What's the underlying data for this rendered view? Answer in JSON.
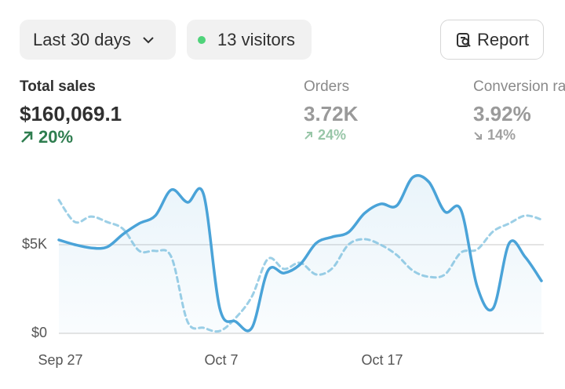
{
  "header": {
    "range_button": "Last 30 days",
    "visitors_button": "13 visitors",
    "report_button": "Report"
  },
  "metrics": [
    {
      "label": "Total sales",
      "value": "$160,069.1",
      "change": "20%"
    },
    {
      "label": "Orders",
      "value": "3.72K",
      "change": "24%"
    },
    {
      "label": "Conversion rate",
      "value": "3.92%",
      "change": "14%"
    }
  ],
  "chart_data": {
    "type": "line",
    "categories": [
      "Sep 27",
      null,
      null,
      null,
      null,
      null,
      null,
      null,
      null,
      null,
      "Oct 7",
      null,
      null,
      null,
      null,
      null,
      null,
      null,
      null,
      null,
      "Oct 17",
      null,
      null,
      null,
      null,
      null,
      null,
      null,
      null,
      null,
      null
    ],
    "series": [
      {
        "color": "#4aa3d8",
        "style": "solid",
        "area": true,
        "values": [
          5270,
          5000,
          4820,
          4870,
          5600,
          6200,
          6640,
          8100,
          7390,
          7830,
          1420,
          660,
          310,
          3540,
          3400,
          3890,
          5090,
          5440,
          5700,
          6770,
          7300,
          7200,
          8800,
          8540,
          6860,
          6950,
          2650,
          1420,
          5090,
          4290,
          2960
        ]
      },
      {
        "color": "#9ccfe6",
        "style": "dashed",
        "area": false,
        "values": [
          7520,
          6280,
          6590,
          6280,
          5880,
          4650,
          4650,
          4290,
          660,
          310,
          130,
          880,
          2080,
          4200,
          3630,
          3980,
          3320,
          3670,
          5000,
          5310,
          5000,
          4420,
          3540,
          3190,
          3320,
          4560,
          4730,
          5750,
          6200,
          6640,
          6420
        ]
      }
    ],
    "ylim": [
      0,
      10000
    ],
    "yticks": [
      {
        "value": 0,
        "label": "$0"
      },
      {
        "value": 5000,
        "label": "$5K"
      }
    ],
    "grid": true
  }
}
